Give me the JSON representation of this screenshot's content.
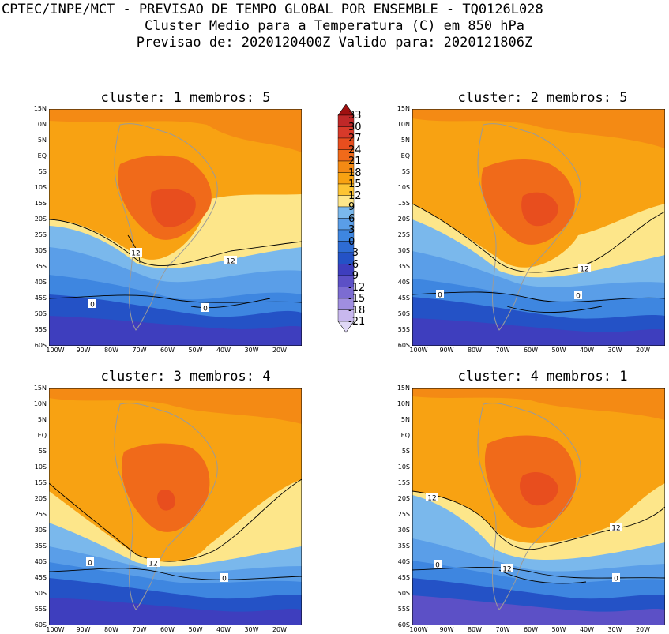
{
  "header": {
    "line1": "CPTEC/INPE/MCT - PREVISAO DE TEMPO GLOBAL POR ENSEMBLE - TQ0126L028",
    "line2": "Cluster Medio para a Temperatura (C) em 850 hPa",
    "line3": "Previsao de: 2020120400Z   Valido para: 2020121806Z"
  },
  "panels": [
    {
      "title": "cluster: 1  membros: 5",
      "contours": [
        "12",
        "12",
        "0",
        "0"
      ]
    },
    {
      "title": "cluster: 2  membros: 5",
      "contours": [
        "12",
        "0",
        "0"
      ]
    },
    {
      "title": "cluster: 3  membros: 4",
      "contours": [
        "0",
        "12",
        "0"
      ]
    },
    {
      "title": "cluster: 4  membros: 1",
      "contours": [
        "12",
        "12",
        "0",
        "12",
        "0"
      ]
    }
  ],
  "axes": {
    "lat_labels": [
      "15N",
      "10N",
      "5N",
      "EQ",
      "5S",
      "10S",
      "15S",
      "20S",
      "25S",
      "30S",
      "35S",
      "40S",
      "45S",
      "50S",
      "55S",
      "60S"
    ],
    "lon_labels": [
      "100W",
      "90W",
      "80W",
      "70W",
      "60W",
      "50W",
      "40W",
      "30W",
      "20W"
    ]
  },
  "colorbar": {
    "labels": [
      "33",
      "30",
      "27",
      "24",
      "21",
      "18",
      "15",
      "12",
      "9",
      "6",
      "3",
      "0",
      "-3",
      "-6",
      "-9",
      "-12",
      "-15",
      "-18",
      "-21"
    ],
    "colors": [
      "#a01010",
      "#c02828",
      "#d83a2a",
      "#e84e1e",
      "#f06a1a",
      "#f48a14",
      "#f8a212",
      "#fcc434",
      "#fde68a",
      "#7ab8ec",
      "#5a9ee8",
      "#3e86e0",
      "#2e6cd4",
      "#2452c6",
      "#3e3ebe",
      "#5c50c6",
      "#7c6cd2",
      "#a08ee0",
      "#c8b8ee",
      "#e0d8f6"
    ]
  }
}
